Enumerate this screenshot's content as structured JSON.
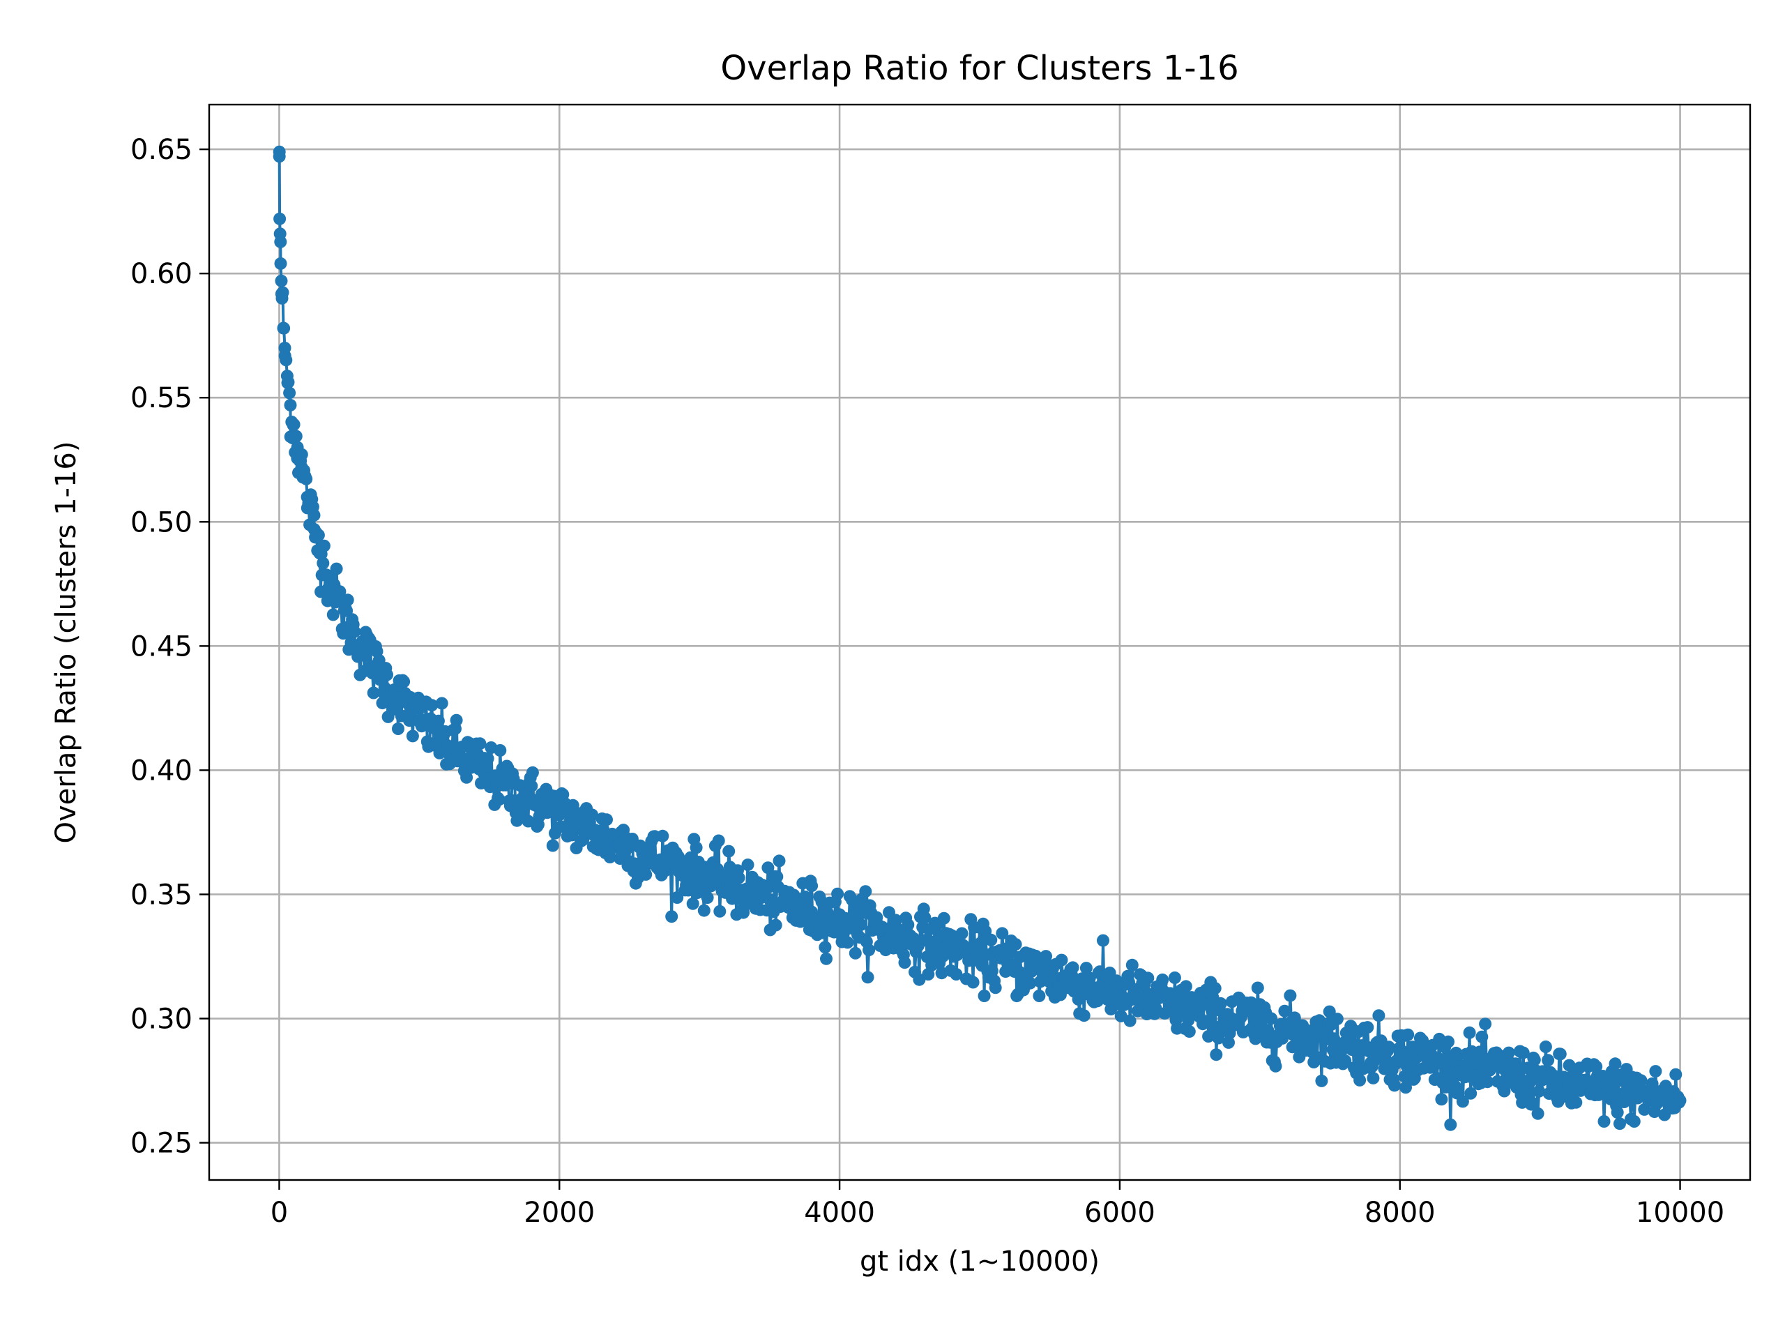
{
  "chart_data": {
    "type": "scatter",
    "title": "Overlap Ratio for Clusters 1-16",
    "xlabel": "gt idx (1~10000)",
    "ylabel": "Overlap Ratio (clusters 1-16)",
    "xlim": [
      -500,
      10500
    ],
    "ylim": [
      0.235,
      0.668
    ],
    "xticks": [
      0,
      2000,
      4000,
      6000,
      8000,
      10000
    ],
    "xtick_labels": [
      "0",
      "2000",
      "4000",
      "6000",
      "8000",
      "10000"
    ],
    "yticks": [
      0.25,
      0.3,
      0.35,
      0.4,
      0.45,
      0.5,
      0.55,
      0.6,
      0.65
    ],
    "ytick_labels": [
      "0.25",
      "0.30",
      "0.35",
      "0.40",
      "0.45",
      "0.50",
      "0.55",
      "0.60",
      "0.65"
    ],
    "grid": true,
    "legend": "none",
    "marker": "dot-with-connecting-line",
    "series": [
      {
        "color": "#1f77b4",
        "x": [
          1,
          3,
          6,
          10,
          15,
          20,
          30,
          40,
          60,
          80,
          100,
          130,
          160,
          200,
          250,
          300,
          400,
          500,
          600,
          700,
          800,
          1000,
          1200,
          1400,
          1600,
          1800,
          2000,
          2300,
          2600,
          2900,
          3200,
          3500,
          3800,
          4000,
          4400,
          4800,
          5200,
          5600,
          6000,
          6400,
          6800,
          7200,
          7600,
          8000,
          8400,
          8800,
          9200,
          9600,
          10000
        ],
        "y": [
          0.649,
          0.622,
          0.616,
          0.604,
          0.597,
          0.59,
          0.578,
          0.57,
          0.556,
          0.547,
          0.539,
          0.53,
          0.522,
          0.51,
          0.497,
          0.487,
          0.47,
          0.458,
          0.448,
          0.439,
          0.432,
          0.42,
          0.41,
          0.402,
          0.394,
          0.388,
          0.382,
          0.374,
          0.366,
          0.36,
          0.354,
          0.348,
          0.343,
          0.34,
          0.334,
          0.328,
          0.322,
          0.316,
          0.31,
          0.305,
          0.3,
          0.295,
          0.29,
          0.285,
          0.281,
          0.277,
          0.273,
          0.27,
          0.267
        ],
        "spread": 0.006
      }
    ]
  }
}
